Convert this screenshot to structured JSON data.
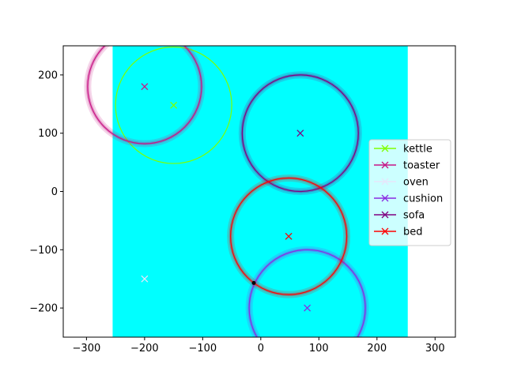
{
  "chart_data": {
    "type": "scatter",
    "title": "",
    "xlabel": "",
    "ylabel": "",
    "xlim": [
      -340,
      335
    ],
    "ylim": [
      -250,
      250
    ],
    "xticks": [
      -300,
      -200,
      -100,
      0,
      100,
      200,
      300
    ],
    "yticks": [
      -200,
      -100,
      0,
      100,
      200
    ],
    "xtick_labels": [
      "−300",
      "−200",
      "−100",
      "0",
      "100",
      "200",
      "300"
    ],
    "ytick_labels": [
      "−200",
      "−100",
      "0",
      "100",
      "200"
    ],
    "grid": false,
    "legend_position": "center-right",
    "background_region": {
      "x": [
        -255,
        253
      ],
      "y": [
        -250,
        250
      ],
      "color": "#00ffff"
    },
    "series": [
      {
        "name": "kettle",
        "color": "#7fff00",
        "marker": {
          "x": -150,
          "y": 148
        },
        "circle": {
          "cx": -150,
          "cy": 148,
          "r": 100
        }
      },
      {
        "name": "toaster",
        "color": "#c71585",
        "marker": {
          "x": -200,
          "y": 180
        },
        "circle": {
          "cx": -200,
          "cy": 180,
          "r": 98
        }
      },
      {
        "name": "oven",
        "color": "#e6e6fa",
        "marker": {
          "x": -200,
          "y": -150
        }
      },
      {
        "name": "cushion",
        "color": "#8a2be2",
        "marker": {
          "x": 80,
          "y": -200
        },
        "circle": {
          "cx": 80,
          "cy": -200,
          "r": 100
        }
      },
      {
        "name": "sofa",
        "color": "#800080",
        "marker": {
          "x": 68,
          "y": 100
        },
        "circle": {
          "cx": 68,
          "cy": 100,
          "r": 100
        }
      },
      {
        "name": "bed",
        "color": "#ff0000",
        "marker": {
          "x": 48,
          "y": -77
        },
        "circle": {
          "cx": 48,
          "cy": -77,
          "r": 100
        }
      }
    ],
    "annotation_point": {
      "x": -12,
      "y": -157,
      "color": "#000000"
    }
  }
}
